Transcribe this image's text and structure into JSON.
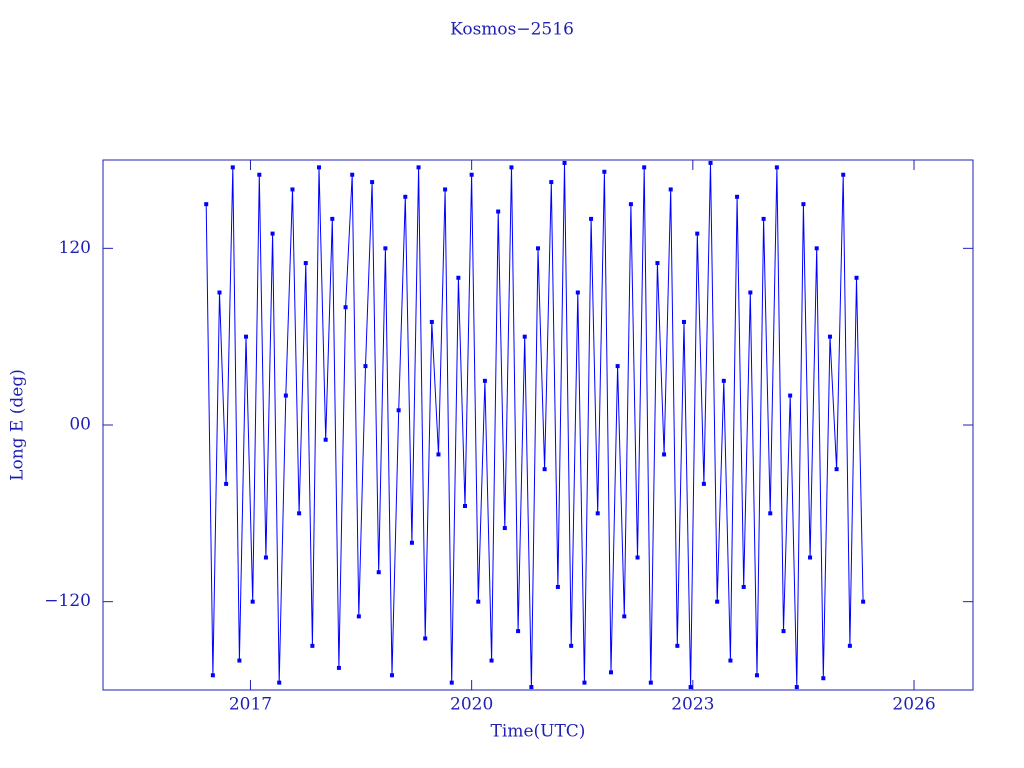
{
  "chart_data": {
    "type": "line",
    "title": "Kosmos−2516",
    "x_label": "Time(UTC)",
    "y_label": "Long E (deg)",
    "xlim": [
      2015.0,
      2026.8
    ],
    "xticks": [
      2017,
      2020,
      2023,
      2026
    ],
    "ylim": [
      -180,
      180
    ],
    "yticks": [
      {
        "value": 120,
        "label": "120"
      },
      {
        "value": 0,
        "label": "00"
      },
      {
        "value": -120,
        "label": "−120"
      }
    ],
    "axis_color": "#1f1fb4",
    "series": [
      {
        "color": "#0000ff",
        "x": [
          2016.4,
          2016.49,
          2016.58,
          2016.67,
          2016.76,
          2016.85,
          2016.94,
          2017.03,
          2017.12,
          2017.21,
          2017.3,
          2017.39,
          2017.48,
          2017.57,
          2017.66,
          2017.75,
          2017.84,
          2017.93,
          2018.02,
          2018.11,
          2018.2,
          2018.29,
          2018.38,
          2018.47,
          2018.56,
          2018.65,
          2018.74,
          2018.83,
          2018.92,
          2019.01,
          2019.1,
          2019.19,
          2019.28,
          2019.37,
          2019.46,
          2019.55,
          2019.64,
          2019.73,
          2019.82,
          2019.91,
          2020.0,
          2020.09,
          2020.18,
          2020.27,
          2020.36,
          2020.45,
          2020.54,
          2020.63,
          2020.72,
          2020.81,
          2020.9,
          2020.99,
          2021.08,
          2021.17,
          2021.26,
          2021.35,
          2021.44,
          2021.53,
          2021.62,
          2021.71,
          2021.8,
          2021.89,
          2021.98,
          2022.07,
          2022.16,
          2022.25,
          2022.34,
          2022.43,
          2022.52,
          2022.61,
          2022.7,
          2022.79,
          2022.88,
          2022.97,
          2023.06,
          2023.15,
          2023.24,
          2023.33,
          2023.42,
          2023.51,
          2023.6,
          2023.69,
          2023.78,
          2023.87,
          2023.96,
          2024.05,
          2024.14,
          2024.23,
          2024.32,
          2024.41,
          2024.5,
          2024.59,
          2024.68,
          2024.77,
          2024.86,
          2024.95,
          2025.04,
          2025.13,
          2025.22,
          2025.31
        ],
        "values": [
          150,
          -170,
          90,
          -40,
          175,
          -160,
          60,
          -120,
          170,
          -90,
          130,
          -175,
          20,
          160,
          -60,
          110,
          -150,
          175,
          -10,
          140,
          -165,
          80,
          170,
          -130,
          40,
          165,
          -100,
          120,
          -170,
          10,
          155,
          -80,
          175,
          -145,
          70,
          -20,
          160,
          -175,
          100,
          -55,
          170,
          -120,
          30,
          -160,
          145,
          -70,
          175,
          -140,
          60,
          -178,
          120,
          -30,
          165,
          -110,
          178,
          -150,
          90,
          -175,
          140,
          -60,
          172,
          -168,
          40,
          -130,
          150,
          -90,
          175,
          -175,
          110,
          -20,
          160,
          -150,
          70,
          -178,
          130,
          -40,
          178,
          -120,
          30,
          -160,
          155,
          -110,
          90,
          -170,
          140,
          -60,
          175,
          -140,
          20,
          -178,
          150,
          -90,
          120,
          -172,
          60,
          -30,
          170,
          -150,
          100,
          -120
        ]
      }
    ]
  }
}
